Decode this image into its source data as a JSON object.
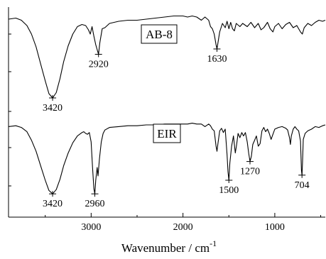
{
  "chart_data": {
    "type": "line",
    "xlabel": "Wavenumber / cm",
    "xlabel_superscript": "-1",
    "xlim": [
      3900,
      450
    ],
    "x_reversed": true,
    "x_ticks": [
      3000,
      2000,
      1000
    ],
    "x_tick_labels": [
      "3000",
      "2000",
      "1000"
    ],
    "y_ticks_unlabeled": true,
    "grid": false,
    "series": [
      {
        "name": "AB-8",
        "points": [
          [
            3900,
            0.94
          ],
          [
            3820,
            0.95
          ],
          [
            3760,
            0.93
          ],
          [
            3700,
            0.88
          ],
          [
            3650,
            0.8
          ],
          [
            3600,
            0.68
          ],
          [
            3550,
            0.52
          ],
          [
            3500,
            0.36
          ],
          [
            3460,
            0.24
          ],
          [
            3420,
            0.2
          ],
          [
            3380,
            0.25
          ],
          [
            3340,
            0.38
          ],
          [
            3300,
            0.54
          ],
          [
            3250,
            0.69
          ],
          [
            3200,
            0.8
          ],
          [
            3150,
            0.87
          ],
          [
            3100,
            0.89
          ],
          [
            3060,
            0.88
          ],
          [
            3030,
            0.84
          ],
          [
            3010,
            0.8
          ],
          [
            2990,
            0.87
          ],
          [
            2970,
            0.78
          ],
          [
            2950,
            0.7
          ],
          [
            2930,
            0.64
          ],
          [
            2920,
            0.61
          ],
          [
            2905,
            0.72
          ],
          [
            2880,
            0.85
          ],
          [
            2850,
            0.86
          ],
          [
            2800,
            0.9
          ],
          [
            2700,
            0.92
          ],
          [
            2600,
            0.93
          ],
          [
            2500,
            0.93
          ],
          [
            2400,
            0.94
          ],
          [
            2300,
            0.95
          ],
          [
            2200,
            0.96
          ],
          [
            2100,
            0.97
          ],
          [
            2000,
            0.97
          ],
          [
            1950,
            0.96
          ],
          [
            1900,
            0.97
          ],
          [
            1850,
            0.96
          ],
          [
            1800,
            0.93
          ],
          [
            1760,
            0.96
          ],
          [
            1720,
            0.93
          ],
          [
            1700,
            0.87
          ],
          [
            1680,
            0.85
          ],
          [
            1660,
            0.8
          ],
          [
            1640,
            0.7
          ],
          [
            1630,
            0.66
          ],
          [
            1620,
            0.71
          ],
          [
            1600,
            0.82
          ],
          [
            1570,
            0.9
          ],
          [
            1540,
            0.86
          ],
          [
            1520,
            0.92
          ],
          [
            1500,
            0.85
          ],
          [
            1480,
            0.91
          ],
          [
            1460,
            0.85
          ],
          [
            1440,
            0.83
          ],
          [
            1420,
            0.9
          ],
          [
            1380,
            0.87
          ],
          [
            1350,
            0.9
          ],
          [
            1300,
            0.87
          ],
          [
            1260,
            0.91
          ],
          [
            1220,
            0.86
          ],
          [
            1180,
            0.9
          ],
          [
            1150,
            0.84
          ],
          [
            1120,
            0.86
          ],
          [
            1080,
            0.91
          ],
          [
            1050,
            0.85
          ],
          [
            1020,
            0.82
          ],
          [
            1000,
            0.87
          ],
          [
            960,
            0.9
          ],
          [
            920,
            0.85
          ],
          [
            880,
            0.89
          ],
          [
            840,
            0.91
          ],
          [
            800,
            0.86
          ],
          [
            760,
            0.88
          ],
          [
            720,
            0.82
          ],
          [
            700,
            0.8
          ],
          [
            680,
            0.86
          ],
          [
            640,
            0.9
          ],
          [
            600,
            0.88
          ],
          [
            560,
            0.91
          ],
          [
            520,
            0.93
          ],
          [
            480,
            0.92
          ],
          [
            450,
            0.93
          ]
        ],
        "peak_labels": [
          {
            "x": 3420,
            "y": 0.2,
            "text": "3420",
            "position": "below"
          },
          {
            "x": 2920,
            "y": 0.61,
            "text": "2920",
            "position": "below"
          },
          {
            "x": 1630,
            "y": 0.66,
            "text": "1630",
            "position": "below"
          }
        ]
      },
      {
        "name": "EIR",
        "points": [
          [
            3900,
            0.93
          ],
          [
            3820,
            0.94
          ],
          [
            3760,
            0.92
          ],
          [
            3700,
            0.87
          ],
          [
            3650,
            0.77
          ],
          [
            3600,
            0.64
          ],
          [
            3550,
            0.47
          ],
          [
            3500,
            0.3
          ],
          [
            3460,
            0.18
          ],
          [
            3420,
            0.14
          ],
          [
            3380,
            0.19
          ],
          [
            3340,
            0.31
          ],
          [
            3300,
            0.47
          ],
          [
            3250,
            0.62
          ],
          [
            3200,
            0.74
          ],
          [
            3150,
            0.82
          ],
          [
            3100,
            0.86
          ],
          [
            3080,
            0.87
          ],
          [
            3060,
            0.85
          ],
          [
            3040,
            0.84
          ],
          [
            3020,
            0.86
          ],
          [
            3000,
            0.75
          ],
          [
            2985,
            0.45
          ],
          [
            2970,
            0.2
          ],
          [
            2960,
            0.14
          ],
          [
            2950,
            0.3
          ],
          [
            2935,
            0.45
          ],
          [
            2925,
            0.35
          ],
          [
            2910,
            0.55
          ],
          [
            2890,
            0.75
          ],
          [
            2870,
            0.85
          ],
          [
            2850,
            0.89
          ],
          [
            2800,
            0.92
          ],
          [
            2700,
            0.93
          ],
          [
            2600,
            0.94
          ],
          [
            2500,
            0.94
          ],
          [
            2400,
            0.95
          ],
          [
            2300,
            0.95
          ],
          [
            2200,
            0.96
          ],
          [
            2100,
            0.96
          ],
          [
            2000,
            0.96
          ],
          [
            1950,
            0.96
          ],
          [
            1900,
            0.97
          ],
          [
            1850,
            0.96
          ],
          [
            1800,
            0.96
          ],
          [
            1760,
            0.93
          ],
          [
            1720,
            0.96
          ],
          [
            1700,
            0.94
          ],
          [
            1680,
            0.9
          ],
          [
            1660,
            0.88
          ],
          [
            1640,
            0.7
          ],
          [
            1630,
            0.64
          ],
          [
            1620,
            0.72
          ],
          [
            1600,
            0.88
          ],
          [
            1580,
            0.91
          ],
          [
            1560,
            0.86
          ],
          [
            1540,
            0.9
          ],
          [
            1520,
            0.6
          ],
          [
            1510,
            0.4
          ],
          [
            1500,
            0.3
          ],
          [
            1490,
            0.5
          ],
          [
            1470,
            0.7
          ],
          [
            1450,
            0.82
          ],
          [
            1430,
            0.62
          ],
          [
            1415,
            0.72
          ],
          [
            1400,
            0.85
          ],
          [
            1380,
            0.8
          ],
          [
            1360,
            0.86
          ],
          [
            1340,
            0.82
          ],
          [
            1320,
            0.86
          ],
          [
            1300,
            0.75
          ],
          [
            1285,
            0.62
          ],
          [
            1270,
            0.52
          ],
          [
            1255,
            0.58
          ],
          [
            1240,
            0.72
          ],
          [
            1220,
            0.77
          ],
          [
            1200,
            0.82
          ],
          [
            1180,
            0.7
          ],
          [
            1160,
            0.73
          ],
          [
            1140,
            0.88
          ],
          [
            1120,
            0.92
          ],
          [
            1100,
            0.87
          ],
          [
            1080,
            0.9
          ],
          [
            1060,
            0.85
          ],
          [
            1040,
            0.78
          ],
          [
            1020,
            0.84
          ],
          [
            1000,
            0.9
          ],
          [
            960,
            0.92
          ],
          [
            920,
            0.93
          ],
          [
            880,
            0.91
          ],
          [
            860,
            0.89
          ],
          [
            840,
            0.8
          ],
          [
            830,
            0.72
          ],
          [
            820,
            0.82
          ],
          [
            800,
            0.9
          ],
          [
            780,
            0.93
          ],
          [
            760,
            0.9
          ],
          [
            740,
            0.88
          ],
          [
            720,
            0.76
          ],
          [
            710,
            0.42
          ],
          [
            704,
            0.36
          ],
          [
            698,
            0.5
          ],
          [
            690,
            0.78
          ],
          [
            670,
            0.85
          ],
          [
            640,
            0.88
          ],
          [
            600,
            0.9
          ],
          [
            560,
            0.93
          ],
          [
            520,
            0.92
          ],
          [
            480,
            0.94
          ],
          [
            450,
            0.95
          ]
        ],
        "peak_labels": [
          {
            "x": 3420,
            "y": 0.14,
            "text": "3420",
            "position": "below"
          },
          {
            "x": 2960,
            "y": 0.14,
            "text": "2960",
            "position": "below"
          },
          {
            "x": 1500,
            "y": 0.3,
            "text": "1500",
            "position": "below"
          },
          {
            "x": 1270,
            "y": 0.52,
            "text": "1270",
            "position": "below"
          },
          {
            "x": 704,
            "y": 0.36,
            "text": "704",
            "position": "below"
          }
        ]
      }
    ]
  },
  "colors": {
    "line": "#000000",
    "background": "#ffffff"
  }
}
